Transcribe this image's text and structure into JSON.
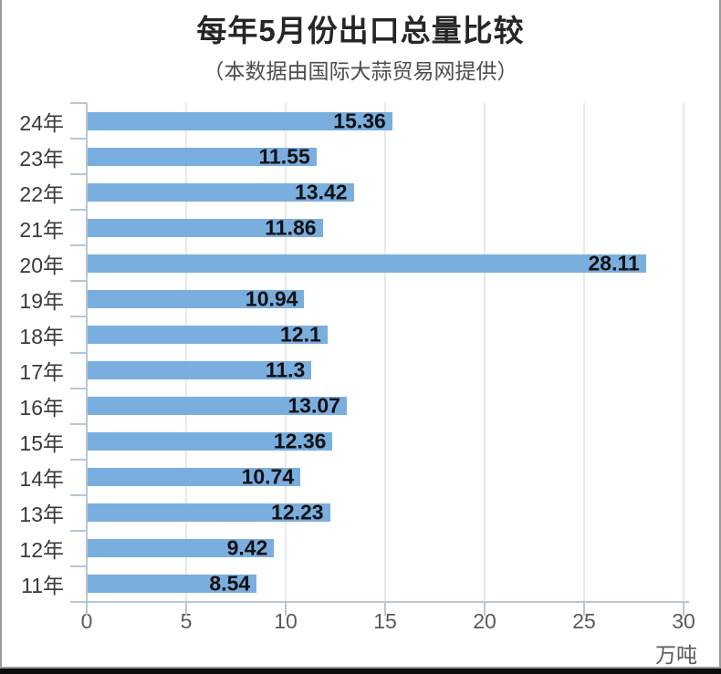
{
  "chart_data": {
    "type": "bar",
    "orientation": "horizontal",
    "title": "每年5月份出口总量比较",
    "subtitle": "（本数据由国际大蒜贸易网提供）",
    "categories": [
      "24年",
      "23年",
      "22年",
      "21年",
      "20年",
      "19年",
      "18年",
      "17年",
      "16年",
      "15年",
      "14年",
      "13年",
      "12年",
      "11年"
    ],
    "values": [
      15.36,
      11.55,
      13.42,
      11.86,
      28.11,
      10.94,
      12.1,
      11.3,
      13.07,
      12.36,
      10.74,
      12.23,
      9.42,
      8.54
    ],
    "unit_label": "万吨",
    "xlabel": "万吨",
    "ylabel": "",
    "xlim": [
      0,
      30
    ],
    "xticks": [
      0,
      5,
      10,
      15,
      20,
      25,
      30
    ],
    "grid": true,
    "legend": "none",
    "value_labels": "inside-end",
    "colors": {
      "bar": "#7aaedf",
      "axis": "#b6c6d5",
      "grid": "#e9e9e9",
      "title": "#262626",
      "subtitle": "#4d4d4d",
      "category_label": "#3a3a3a",
      "value_label": "#111111",
      "tick_label": "#5a5a5a",
      "background": "#ffffff"
    }
  }
}
